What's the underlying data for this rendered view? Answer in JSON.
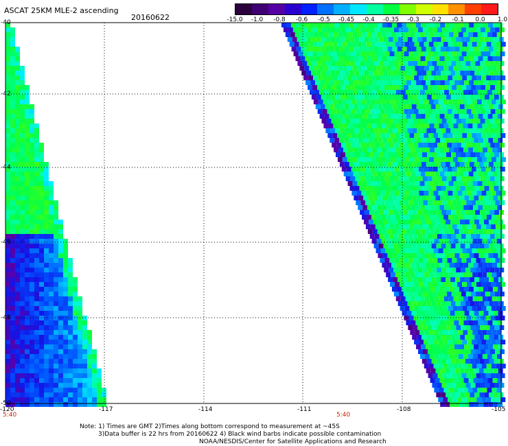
{
  "header": {
    "title": "ASCAT 25KM MLE-2 ascending",
    "date": "20160622"
  },
  "colorbar": {
    "labels": [
      "-15.0",
      "-1.0",
      "-0.8",
      "-0.6",
      "-0.5",
      "-0.45",
      "-0.4",
      "-0.35",
      "-0.3",
      "-0.2",
      "-0.1",
      "0.0",
      "1.0"
    ],
    "colors": [
      "#2a003d",
      "#3f0073",
      "#5500a5",
      "#2a00d0",
      "#0020ff",
      "#0070ff",
      "#00b0ff",
      "#00e8ff",
      "#00ffa0",
      "#00ff40",
      "#80ff00",
      "#d0ff00",
      "#ffe000",
      "#ff9000",
      "#ff4000",
      "#ff1a1a"
    ]
  },
  "axes": {
    "lat_labels": [
      "-40",
      "-42",
      "-44",
      "-46",
      "-48",
      "-50"
    ],
    "lon_labels": [
      "-120",
      "-117",
      "-114",
      "-111",
      "-108",
      "-105"
    ]
  },
  "time_labels": [
    "5:40",
    "5:40"
  ],
  "notes": {
    "line1": "Note: 1) Times are GMT 2)Times along bottom correspond to measurement at ~45S",
    "line2": "3)Data buffer is 22 hrs from 20160622 4) Black wind barbs indicate possible contamination",
    "line3": "NOAA/NESDIS/Center for Satellite Applications and Research"
  }
}
